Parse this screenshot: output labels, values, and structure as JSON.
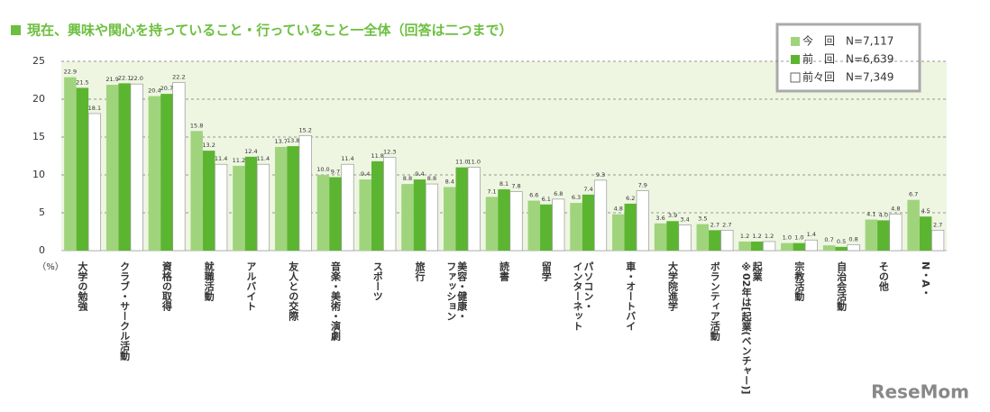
{
  "chart_data": {
    "type": "bar",
    "title": "現在、興味や関心を持っていること・行っていること一全体（回答は二つまで）",
    "y_unit": "（%）",
    "watermark": "ReseMom",
    "categories": [
      [
        "大学の勉強"
      ],
      [
        "クラブ・サークル活動"
      ],
      [
        "資格の取得"
      ],
      [
        "就職活動"
      ],
      [
        "アルバイト"
      ],
      [
        "友人との交際"
      ],
      [
        "音楽・美術・演劇"
      ],
      [
        "スポーツ"
      ],
      [
        "旅行"
      ],
      [
        "美容・健康・",
        "ファッション"
      ],
      [
        "読書"
      ],
      [
        "留学"
      ],
      [
        "パソコン・",
        "インターネット"
      ],
      [
        "車・オートバイ"
      ],
      [
        "大学院進学"
      ],
      [
        "ボランティア活動"
      ],
      [
        "起業",
        "※02年は[起業(ベンチャー)]"
      ],
      [
        "宗教活動"
      ],
      [
        "自治会活動"
      ],
      [
        "その他"
      ],
      [
        "N・A・"
      ]
    ],
    "series": [
      {
        "name": "今　回",
        "n_label": "N=7,117",
        "color": "#9fd47c",
        "values": [
          22.9,
          21.9,
          20.4,
          15.8,
          11.2,
          13.7,
          10.0,
          9.4,
          8.8,
          8.4,
          7.1,
          6.6,
          6.3,
          4.8,
          3.6,
          3.5,
          1.2,
          1.0,
          0.7,
          4.1,
          6.7
        ],
        "value_labels": [
          "22.9",
          "21.9",
          "20.4",
          "15.8",
          "11.2",
          "13.7",
          "10.0",
          "9.4",
          "8.8",
          "8.4",
          "7.1",
          "6.6",
          "6.3",
          "4.8",
          "3.6",
          "3.5",
          "1.2",
          "1.0",
          "0.7",
          "4.1",
          "6.7"
        ]
      },
      {
        "name": "前　回",
        "n_label": "N=6,639",
        "color": "#5cb531",
        "values": [
          21.5,
          22.1,
          20.7,
          13.2,
          12.4,
          13.8,
          9.7,
          11.8,
          9.4,
          11.0,
          8.1,
          6.1,
          7.4,
          6.2,
          3.9,
          2.7,
          1.2,
          1.0,
          0.5,
          4.0,
          4.5
        ],
        "value_labels": [
          "21.5",
          "22.1",
          "20.7",
          "13.2",
          "12.4",
          "13.8",
          "9.7",
          "11.8",
          "9.4",
          "11.0",
          "8.1",
          "6.1",
          "7.4",
          "6.2",
          "3.9",
          "2.7",
          "1.2",
          "1.0",
          "0.5",
          "4.0",
          "4.5"
        ]
      },
      {
        "name": "前々回",
        "n_label": "N=7,349",
        "color": "#ffffff",
        "values": [
          18.1,
          22.0,
          22.2,
          11.4,
          11.4,
          15.2,
          11.4,
          12.3,
          8.8,
          11.0,
          7.8,
          6.8,
          9.3,
          7.9,
          3.4,
          2.7,
          1.2,
          1.4,
          0.8,
          4.8,
          2.7
        ],
        "value_labels": [
          "18.1",
          "22.0",
          "22.2",
          "11.4",
          "11.4",
          "15.2",
          "11.4",
          "12.3",
          "8.8",
          "11.0",
          "7.8",
          "6.8",
          "9.3",
          "7.9",
          "3.4",
          "2.7",
          "1.2",
          "1.4",
          "0.8",
          "4.8",
          "2.7"
        ]
      }
    ],
    "ylim": [
      0,
      25
    ],
    "yticks": [
      0,
      5,
      10,
      15,
      20,
      25
    ],
    "grid": true
  }
}
